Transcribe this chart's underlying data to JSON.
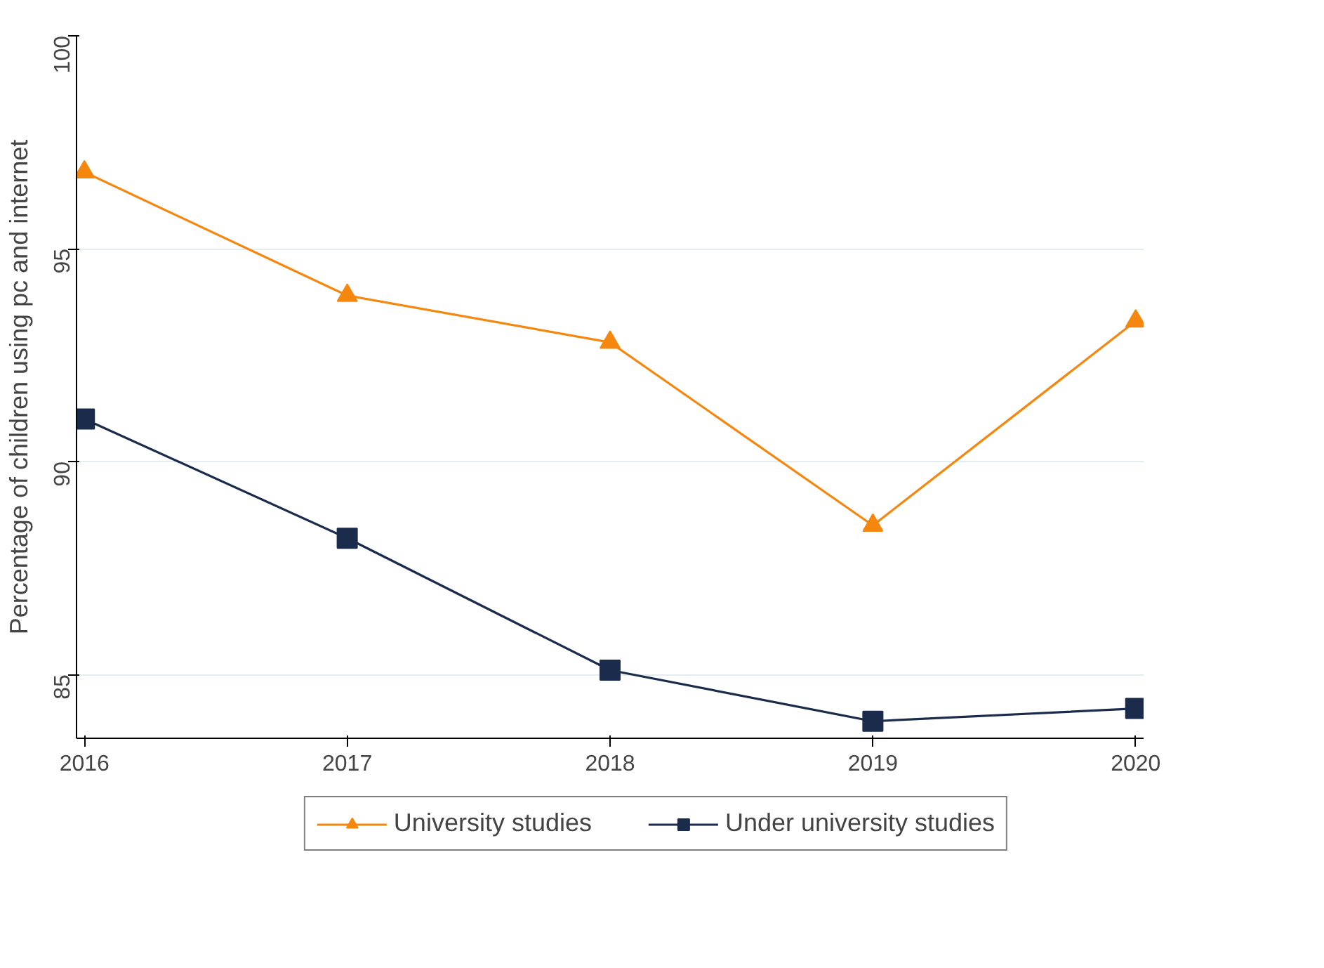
{
  "chart_data": {
    "type": "line",
    "ylabel": "Percentage of children using pc and internet",
    "x": [
      2016,
      2017,
      2018,
      2019,
      2020
    ],
    "xlim": [
      2015.97,
      2020.03
    ],
    "xticks": [
      2016,
      2017,
      2018,
      2019,
      2020
    ],
    "ylim": [
      83.5,
      100
    ],
    "yticks": [
      85,
      90,
      95,
      100
    ],
    "grid": "y",
    "legend": "bottom",
    "series": [
      {
        "name": "University studies",
        "color": "#f5870f",
        "marker": "triangle",
        "values": [
          96.8,
          93.9,
          92.8,
          88.5,
          93.3
        ]
      },
      {
        "name": "Under university studies",
        "color": "#1a2b4c",
        "marker": "square",
        "values": [
          91.0,
          88.2,
          85.1,
          83.9,
          84.2
        ]
      }
    ]
  }
}
